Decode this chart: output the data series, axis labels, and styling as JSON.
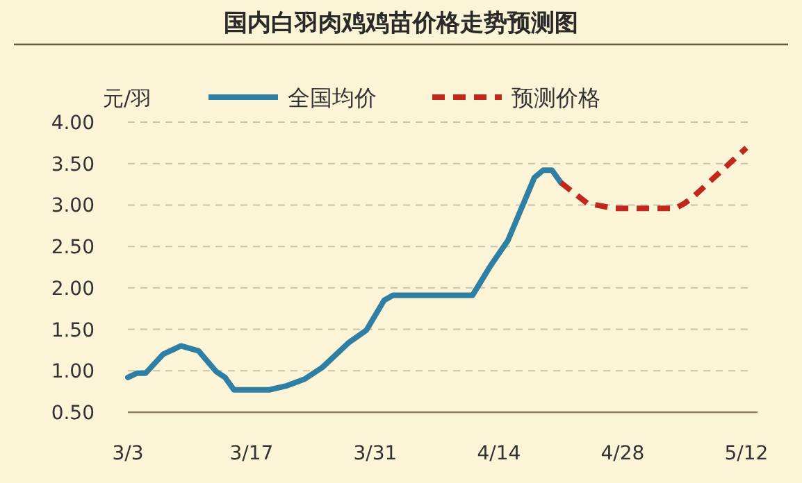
{
  "chart_data": {
    "type": "line",
    "title": "国内白羽肉鸡鸡苗价格走势预测图",
    "ylabel": "元/羽",
    "legend": "top",
    "grid": "y",
    "marker": "none",
    "xlim": [
      "--03-03",
      "--05-12"
    ],
    "xticks": [
      {
        "value": "--03-03",
        "label": "3/3"
      },
      {
        "value": "--03-17",
        "label": "3/17"
      },
      {
        "value": "--03-31",
        "label": "3/31"
      },
      {
        "value": "--04-14",
        "label": "4/14"
      },
      {
        "value": "--04-28",
        "label": "4/28"
      },
      {
        "value": "--05-12",
        "label": "5/12"
      }
    ],
    "ylim": [
      0.5,
      4
    ],
    "yticks": [
      {
        "value": 0.5,
        "label": "0.50"
      },
      {
        "value": 1,
        "label": "1.00"
      },
      {
        "value": 1.5,
        "label": "1.50"
      },
      {
        "value": 2,
        "label": "2.00"
      },
      {
        "value": 2.5,
        "label": "2.50"
      },
      {
        "value": 3,
        "label": "3.00"
      },
      {
        "value": 3.5,
        "label": "3.50"
      },
      {
        "value": 4,
        "label": "4.00"
      }
    ],
    "series": [
      {
        "name": "全国均价",
        "color": "#2e7fa3",
        "line_style": "solid",
        "x": [
          "--03-03",
          "--03-04",
          "--03-05",
          "--03-07",
          "--03-09",
          "--03-11",
          "--03-13",
          "--03-14",
          "--03-15",
          "--03-19",
          "--03-21",
          "--03-23",
          "--03-25",
          "--03-28",
          "--03-30",
          "--04-01",
          "--04-02",
          "--04-11",
          "--04-13",
          "--04-15",
          "--04-18",
          "--04-19",
          "--04-20",
          "--04-21"
        ],
        "values": [
          0.92,
          0.97,
          0.97,
          1.2,
          1.3,
          1.24,
          0.99,
          0.92,
          0.77,
          0.77,
          0.82,
          0.9,
          1.04,
          1.34,
          1.49,
          1.85,
          1.91,
          1.91,
          2.26,
          2.57,
          3.33,
          3.42,
          3.42,
          3.27
        ]
      },
      {
        "name": "预测价格",
        "color": "#c0281e",
        "line_style": "dashed",
        "x": [
          "--04-21",
          "--04-24",
          "--04-27",
          "--05-04",
          "--05-05",
          "--05-06",
          "--05-12"
        ],
        "values": [
          3.27,
          3.02,
          2.96,
          2.96,
          3.02,
          3.1,
          3.69
        ]
      }
    ]
  }
}
